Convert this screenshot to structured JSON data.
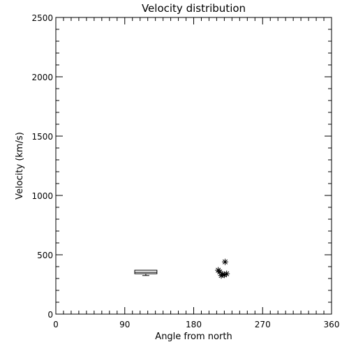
{
  "chart_data": {
    "type": "scatter",
    "title": "Velocity distribution",
    "xlabel": "Angle from north",
    "ylabel": "Velocity (km/s)",
    "xlim": [
      0,
      360
    ],
    "ylim": [
      0,
      2500
    ],
    "x_ticks": [
      0,
      90,
      180,
      270,
      360
    ],
    "x_tick_labels": [
      "0",
      "90",
      "180",
      "270",
      "360"
    ],
    "y_ticks": [
      0,
      500,
      1000,
      1500,
      2000,
      2500
    ],
    "y_tick_labels": [
      "0",
      "500",
      "1000",
      "1500",
      "2000",
      "2500"
    ],
    "x_minor_step": 10,
    "y_minor_step": 100,
    "grid": false,
    "box": {
      "x_left": 103,
      "x_right": 132,
      "y_low": 325,
      "q1": 340,
      "q3": 370,
      "median": 352
    },
    "points": [
      {
        "x": 221,
        "y": 440
      },
      {
        "x": 212,
        "y": 370
      },
      {
        "x": 214,
        "y": 355
      },
      {
        "x": 218,
        "y": 335
      },
      {
        "x": 223,
        "y": 340
      },
      {
        "x": 216,
        "y": 325
      },
      {
        "x": 220,
        "y": 330
      }
    ],
    "marker": "asterisk",
    "color": "#000000"
  }
}
